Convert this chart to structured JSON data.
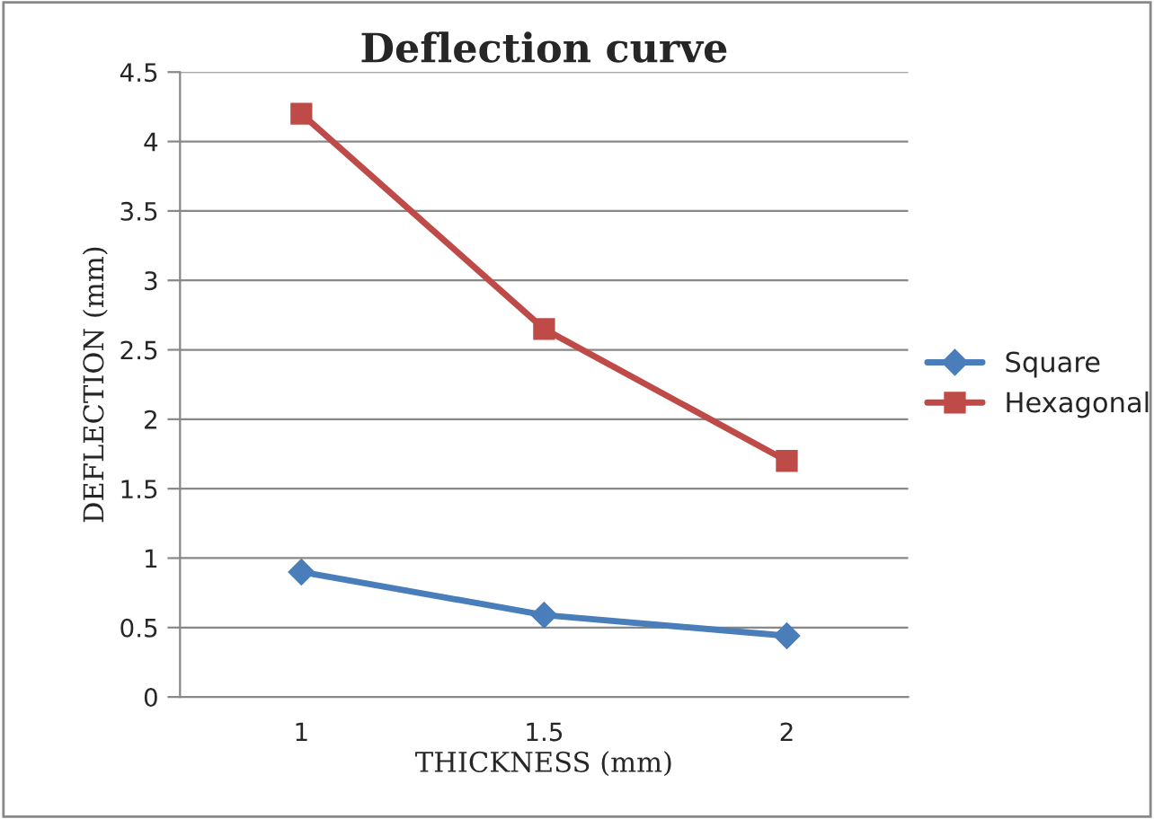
{
  "chart_data": {
    "type": "line",
    "title": "Deflection curve",
    "xlabel": "THICKNESS (mm)",
    "ylabel": "DEFLECTION (mm)",
    "categories": [
      "1",
      "1.5",
      "2"
    ],
    "series": [
      {
        "name": "Square",
        "color": "#4a7ebb",
        "values": [
          0.9,
          0.59,
          0.44
        ],
        "marker": "diamond"
      },
      {
        "name": "Hexagonal",
        "color": "#be4b48",
        "values": [
          4.2,
          2.65,
          1.7
        ],
        "marker": "square"
      }
    ],
    "ylim": [
      0,
      4.5
    ],
    "yticks": [
      0,
      0.5,
      1,
      1.5,
      2,
      2.5,
      3,
      3.5,
      4,
      4.5
    ],
    "grid": "y",
    "legend": "right",
    "line_style": "solid"
  }
}
